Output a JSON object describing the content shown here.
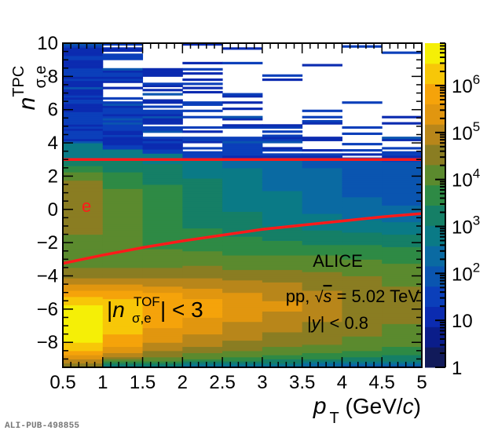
{
  "chart_data": {
    "type": "heatmap",
    "title": "",
    "xlabel": {
      "var": "p",
      "sub": "T",
      "unit": "(GeV/",
      "unit_italic": "c",
      "unit_close": ")"
    },
    "ylabel": {
      "var": "n",
      "sup": "TPC",
      "sub": "σ,e"
    },
    "xlim": [
      0.5,
      5.0
    ],
    "ylim": [
      -9.5,
      10.0
    ],
    "x_ticks": [
      0.5,
      1,
      1.5,
      2,
      2.5,
      3,
      3.5,
      4,
      4.5,
      5
    ],
    "x_tick_labels": [
      "0.5",
      "1",
      "1.5",
      "2",
      "2.5",
      "3",
      "3.5",
      "4",
      "4.5",
      "5"
    ],
    "y_ticks": [
      -8,
      -6,
      -4,
      -2,
      0,
      2,
      4,
      6,
      8,
      10
    ],
    "y_tick_labels": [
      "−8",
      "−6",
      "−4",
      "−2",
      "0",
      "2",
      "4",
      "6",
      "8",
      "10"
    ],
    "x_bin_edges": [
      0.5,
      1.0,
      1.5,
      2.0,
      2.5,
      3.0,
      3.5,
      4.0,
      4.5,
      5.0
    ],
    "z_scale": "log",
    "zlim": [
      1,
      8000000
    ],
    "colorbar_ticks": [
      {
        "value": 1,
        "base": "1",
        "exp": ""
      },
      {
        "value": 10,
        "base": "10",
        "exp": ""
      },
      {
        "value": 100,
        "base": "10",
        "exp": "2"
      },
      {
        "value": 1000,
        "base": "10",
        "exp": "3"
      },
      {
        "value": 10000,
        "base": "10",
        "exp": "4"
      },
      {
        "value": 100000,
        "base": "10",
        "exp": "5"
      },
      {
        "value": 1000000,
        "base": "10",
        "exp": "6"
      }
    ],
    "colormap": [
      "#111a5a",
      "#0a1d8a",
      "#0b2bb0",
      "#0b3fba",
      "#0a55b0",
      "#0a6aa2",
      "#0a7a86",
      "#157f66",
      "#2e8a45",
      "#5b8a2e",
      "#8a7d22",
      "#b8861a",
      "#e1960f",
      "#f5a30a",
      "#f7c708",
      "#f5ef06"
    ],
    "cells_log10_by_xbin": [
      {
        "x_lo": 0.5,
        "profile": [
          [
            -9.5,
            4.3
          ],
          [
            -9.0,
            5.2
          ],
          [
            -8.5,
            6.0
          ],
          [
            -8.0,
            6.5
          ],
          [
            -7.0,
            6.7
          ],
          [
            -6.0,
            6.7
          ],
          [
            -5.5,
            6.3
          ],
          [
            -5.0,
            5.8
          ],
          [
            -4.5,
            5.2
          ],
          [
            -4.0,
            4.6
          ],
          [
            -3.0,
            4.0
          ],
          [
            -2.0,
            4.1
          ],
          [
            -1.0,
            4.5
          ],
          [
            0.0,
            4.7
          ],
          [
            1.0,
            4.6
          ],
          [
            2.0,
            4.2
          ],
          [
            2.5,
            3.6
          ],
          [
            3.0,
            3.0
          ],
          [
            4.0,
            2.6
          ],
          [
            6.0,
            2.4
          ],
          [
            8.0,
            2.3
          ],
          [
            10.0,
            2.3
          ]
        ]
      },
      {
        "x_lo": 1.0,
        "profile": [
          [
            -9.5,
            2.8
          ],
          [
            -9.0,
            4.5
          ],
          [
            -8.5,
            5.3
          ],
          [
            -8.0,
            5.9
          ],
          [
            -7.0,
            6.2
          ],
          [
            -6.0,
            6.3
          ],
          [
            -5.5,
            6.1
          ],
          [
            -5.0,
            5.7
          ],
          [
            -4.5,
            5.2
          ],
          [
            -4.0,
            4.6
          ],
          [
            -3.0,
            4.0
          ],
          [
            -2.0,
            4.0
          ],
          [
            -1.0,
            4.1
          ],
          [
            0.0,
            4.2
          ],
          [
            1.0,
            4.0
          ],
          [
            2.0,
            3.6
          ],
          [
            3.0,
            3.0
          ],
          [
            4.0,
            2.4
          ],
          [
            6.0,
            1.8
          ],
          [
            8.0,
            1.4
          ],
          [
            10.0,
            1.2
          ]
        ]
      },
      {
        "x_lo": 1.5,
        "profile": [
          [
            -9.5,
            2.6
          ],
          [
            -9.0,
            4.2
          ],
          [
            -8.5,
            4.8
          ],
          [
            -8.0,
            5.2
          ],
          [
            -7.0,
            5.7
          ],
          [
            -6.0,
            6.0
          ],
          [
            -5.5,
            5.9
          ],
          [
            -5.0,
            5.6
          ],
          [
            -4.5,
            5.1
          ],
          [
            -4.0,
            4.6
          ],
          [
            -3.0,
            4.0
          ],
          [
            -2.0,
            3.8
          ],
          [
            -1.0,
            3.7
          ],
          [
            0.0,
            3.7
          ],
          [
            1.0,
            3.6
          ],
          [
            2.0,
            3.3
          ],
          [
            3.0,
            2.9
          ],
          [
            4.0,
            2.2
          ],
          [
            6.0,
            1.3
          ],
          [
            8.0,
            0.9
          ],
          [
            10.0,
            0.6
          ]
        ]
      },
      {
        "x_lo": 2.0,
        "profile": [
          [
            -9.5,
            2.4
          ],
          [
            -9.0,
            3.9
          ],
          [
            -8.5,
            4.5
          ],
          [
            -8.0,
            4.9
          ],
          [
            -7.0,
            5.4
          ],
          [
            -6.0,
            5.8
          ],
          [
            -5.5,
            5.7
          ],
          [
            -5.0,
            5.4
          ],
          [
            -4.5,
            5.0
          ],
          [
            -4.0,
            4.6
          ],
          [
            -3.0,
            4.1
          ],
          [
            -2.0,
            3.7
          ],
          [
            -1.0,
            3.4
          ],
          [
            0.0,
            3.3
          ],
          [
            1.0,
            3.3
          ],
          [
            2.0,
            3.0
          ],
          [
            3.0,
            2.6
          ],
          [
            4.0,
            1.9
          ],
          [
            6.0,
            0.8
          ],
          [
            8.0,
            0.4
          ],
          [
            10.0,
            0.3
          ]
        ]
      },
      {
        "x_lo": 2.5,
        "profile": [
          [
            -9.5,
            2.3
          ],
          [
            -9.0,
            3.7
          ],
          [
            -8.5,
            4.3
          ],
          [
            -8.0,
            4.7
          ],
          [
            -7.0,
            5.1
          ],
          [
            -6.0,
            5.5
          ],
          [
            -5.5,
            5.4
          ],
          [
            -5.0,
            5.2
          ],
          [
            -4.5,
            4.9
          ],
          [
            -4.0,
            4.5
          ],
          [
            -3.0,
            4.0
          ],
          [
            -2.0,
            3.6
          ],
          [
            -1.0,
            3.2
          ],
          [
            0.0,
            3.0
          ],
          [
            1.0,
            2.9
          ],
          [
            2.0,
            2.8
          ],
          [
            3.0,
            2.4
          ],
          [
            4.0,
            1.6
          ],
          [
            6.0,
            0.5
          ],
          [
            8.0,
            0.2
          ],
          [
            10.0,
            0.1
          ]
        ]
      },
      {
        "x_lo": 3.0,
        "profile": [
          [
            -9.5,
            2.2
          ],
          [
            -9.0,
            3.6
          ],
          [
            -8.5,
            4.2
          ],
          [
            -8.0,
            4.5
          ],
          [
            -7.0,
            4.9
          ],
          [
            -6.0,
            5.2
          ],
          [
            -5.5,
            5.2
          ],
          [
            -5.0,
            5.0
          ],
          [
            -4.5,
            4.8
          ],
          [
            -4.0,
            4.5
          ],
          [
            -3.0,
            4.0
          ],
          [
            -2.0,
            3.5
          ],
          [
            -1.0,
            3.0
          ],
          [
            0.0,
            2.8
          ],
          [
            1.0,
            2.6
          ],
          [
            2.0,
            2.5
          ],
          [
            3.0,
            2.2
          ],
          [
            4.0,
            1.3
          ],
          [
            6.0,
            0.3
          ],
          [
            8.0,
            0.1
          ],
          [
            10.0,
            0.0
          ]
        ]
      },
      {
        "x_lo": 3.5,
        "profile": [
          [
            -9.5,
            2.0
          ],
          [
            -9.0,
            3.4
          ],
          [
            -8.5,
            4.0
          ],
          [
            -8.0,
            4.4
          ],
          [
            -7.0,
            4.7
          ],
          [
            -6.0,
            4.9
          ],
          [
            -5.5,
            4.9
          ],
          [
            -5.0,
            4.8
          ],
          [
            -4.5,
            4.6
          ],
          [
            -4.0,
            4.4
          ],
          [
            -3.0,
            4.0
          ],
          [
            -2.0,
            3.4
          ],
          [
            -1.0,
            2.9
          ],
          [
            0.0,
            2.5
          ],
          [
            1.0,
            2.3
          ],
          [
            2.0,
            2.3
          ],
          [
            3.0,
            2.0
          ],
          [
            4.0,
            1.0
          ],
          [
            6.0,
            0.2
          ],
          [
            8.0,
            0.0
          ],
          [
            10.0,
            0.0
          ]
        ]
      },
      {
        "x_lo": 4.0,
        "profile": [
          [
            -9.5,
            1.9
          ],
          [
            -9.0,
            3.3
          ],
          [
            -8.5,
            3.9
          ],
          [
            -8.0,
            4.2
          ],
          [
            -7.0,
            4.5
          ],
          [
            -6.0,
            4.6
          ],
          [
            -5.5,
            4.6
          ],
          [
            -5.0,
            4.6
          ],
          [
            -4.5,
            4.5
          ],
          [
            -4.0,
            4.3
          ],
          [
            -3.0,
            3.9
          ],
          [
            -2.0,
            3.4
          ],
          [
            -1.0,
            2.8
          ],
          [
            0.0,
            2.3
          ],
          [
            1.0,
            2.1
          ],
          [
            2.0,
            2.1
          ],
          [
            3.0,
            1.8
          ],
          [
            4.0,
            0.8
          ],
          [
            6.0,
            0.1
          ],
          [
            8.0,
            0.0
          ],
          [
            10.0,
            0.0
          ]
        ]
      },
      {
        "x_lo": 4.5,
        "profile": [
          [
            -9.5,
            1.8
          ],
          [
            -9.0,
            3.2
          ],
          [
            -8.5,
            3.7
          ],
          [
            -8.0,
            4.0
          ],
          [
            -7.0,
            4.3
          ],
          [
            -6.0,
            4.4
          ],
          [
            -5.5,
            4.4
          ],
          [
            -5.0,
            4.4
          ],
          [
            -4.5,
            4.3
          ],
          [
            -4.0,
            4.2
          ],
          [
            -3.0,
            3.8
          ],
          [
            -2.0,
            3.3
          ],
          [
            -1.0,
            2.7
          ],
          [
            0.0,
            2.2
          ],
          [
            1.0,
            2.0
          ],
          [
            2.0,
            2.0
          ],
          [
            3.0,
            1.7
          ],
          [
            4.0,
            0.7
          ],
          [
            6.0,
            0.1
          ],
          [
            8.0,
            0.0
          ],
          [
            10.0,
            0.0
          ]
        ]
      }
    ],
    "series": [
      {
        "name": "upper cut",
        "type": "line",
        "color": "#ff1a1a",
        "x": [
          0.5,
          5.0
        ],
        "y": [
          3.0,
          3.0
        ]
      },
      {
        "name": "lower cut",
        "type": "line",
        "color": "#ff1a1a",
        "x": [
          0.5,
          1.0,
          1.5,
          2.0,
          2.5,
          3.0,
          3.5,
          4.0,
          4.5,
          5.0
        ],
        "y": [
          -3.25,
          -2.75,
          -2.3,
          -1.9,
          -1.55,
          -1.2,
          -0.95,
          -0.7,
          -0.45,
          -0.25
        ]
      }
    ],
    "annotations": {
      "particle_label": {
        "text": "e",
        "color": "#ff1a1a",
        "x": 0.75,
        "y": 0.2
      },
      "experiment": "ALICE",
      "system_prefix": "pp, ",
      "sqrt_symbol": "√",
      "energy_var": "s",
      "energy_value": " = 5.02 TeV",
      "rapidity_open": "|",
      "rapidity_var": "y",
      "rapidity_rest": "| < 0.8",
      "tof_open": "|",
      "tof_var": "n",
      "tof_sup": "TOF",
      "tof_sub": "σ,e",
      "tof_rest": "| < 3"
    },
    "grid": false,
    "legend": "none"
  },
  "footer": {
    "publication_id": "ALI-PUB-498855"
  }
}
